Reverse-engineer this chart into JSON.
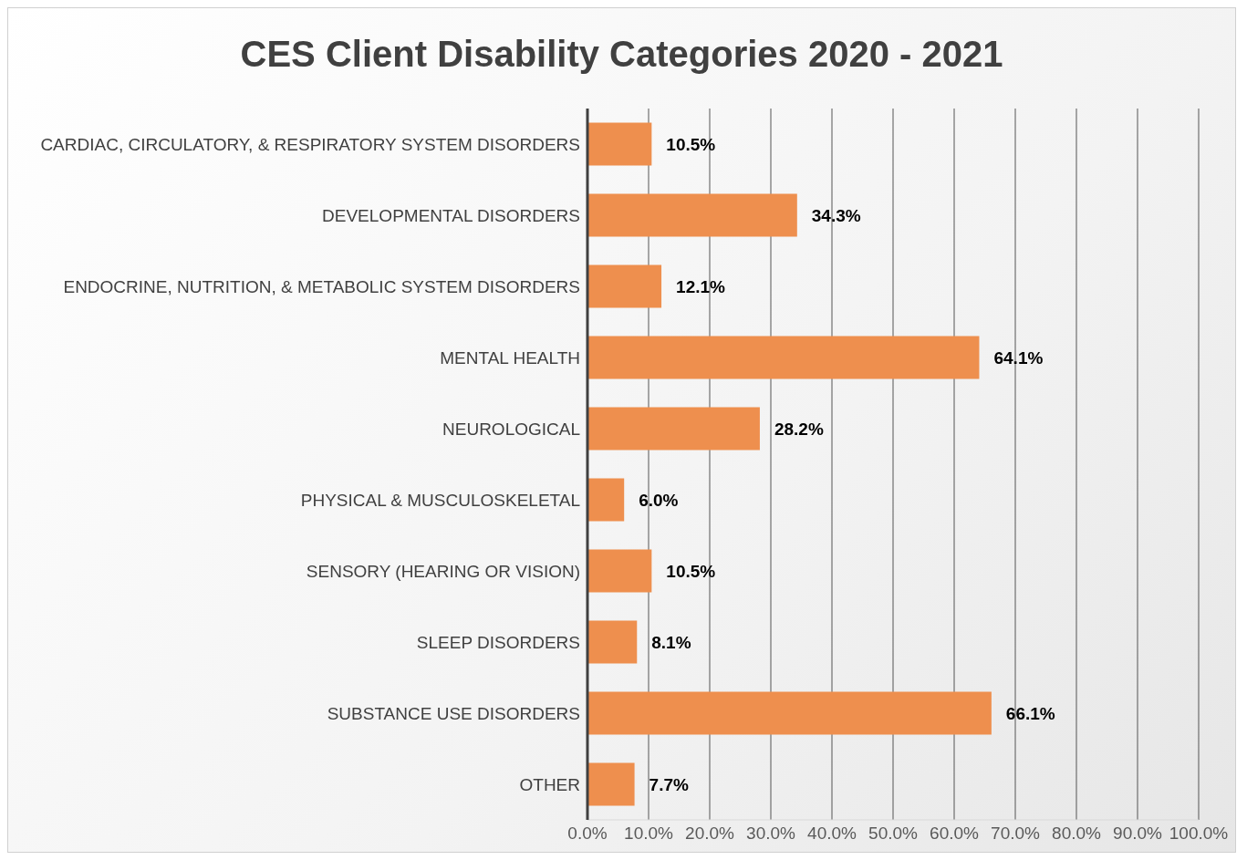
{
  "chart_data": {
    "type": "bar",
    "orientation": "horizontal",
    "title": "CES Client Disability Categories 2020 - 2021",
    "categories": [
      "CARDIAC, CIRCULATORY, & RESPIRATORY SYSTEM DISORDERS",
      "DEVELOPMENTAL DISORDERS",
      "ENDOCRINE, NUTRITION, & METABOLIC SYSTEM DISORDERS",
      "MENTAL HEALTH",
      "NEUROLOGICAL",
      "PHYSICAL & MUSCULOSKELETAL",
      "SENSORY (HEARING OR VISION)",
      "SLEEP DISORDERS",
      "SUBSTANCE USE DISORDERS",
      "OTHER"
    ],
    "values": [
      10.5,
      34.3,
      12.1,
      64.1,
      28.2,
      6.0,
      10.5,
      8.1,
      66.1,
      7.7
    ],
    "value_labels": [
      "10.5%",
      "34.3%",
      "12.1%",
      "64.1%",
      "28.2%",
      "6.0%",
      "10.5%",
      "8.1%",
      "66.1%",
      "7.7%"
    ],
    "color": "#ee8f4e",
    "xlim": [
      0,
      100
    ],
    "xticks": [
      {
        "value": 0,
        "label": "0.0%"
      },
      {
        "value": 10,
        "label": "10.0%"
      },
      {
        "value": 20,
        "label": "20.0%"
      },
      {
        "value": 30,
        "label": "30.0%"
      },
      {
        "value": 40,
        "label": "40.0%"
      },
      {
        "value": 50,
        "label": "50.0%"
      },
      {
        "value": 60,
        "label": "60.0%"
      },
      {
        "value": 70,
        "label": "70.0%"
      },
      {
        "value": 80,
        "label": "80.0%"
      },
      {
        "value": 90,
        "label": "90.0%"
      },
      {
        "value": 100,
        "label": "100.0%"
      }
    ],
    "grid": "x"
  }
}
